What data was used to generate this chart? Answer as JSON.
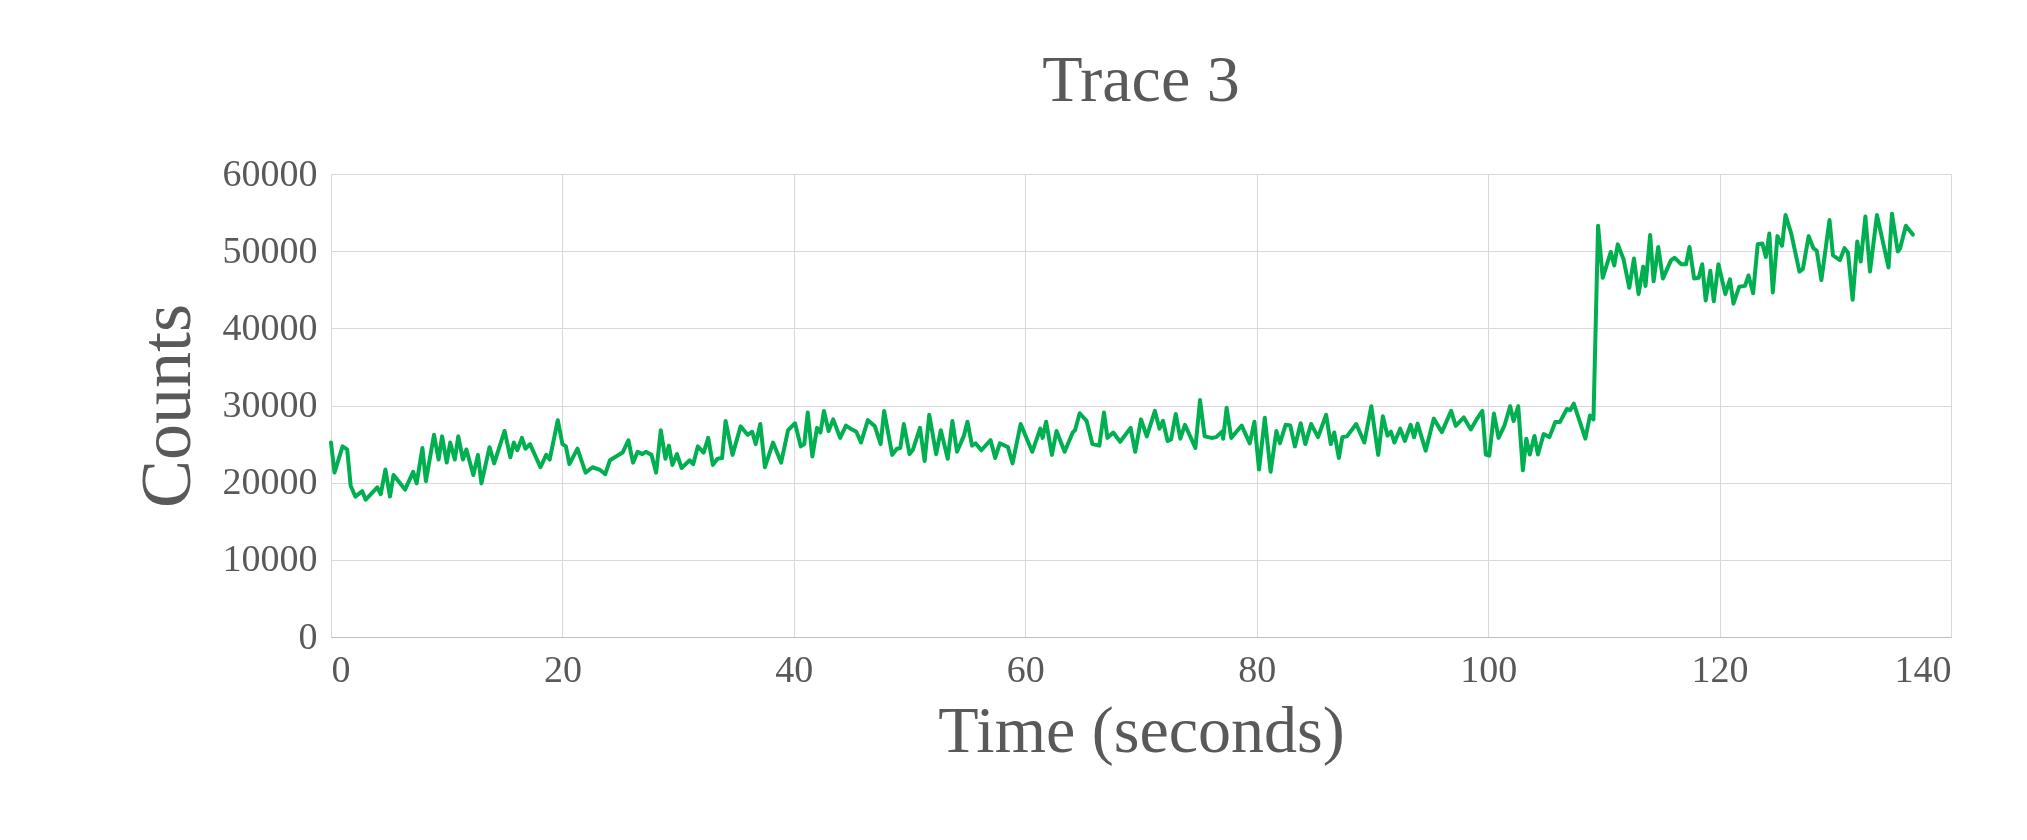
{
  "chart_data": {
    "type": "line",
    "title": "Trace 3",
    "xlabel": "Time (seconds)",
    "ylabel": "Counts",
    "xlim": [
      0,
      140
    ],
    "xticks": [
      0,
      20,
      40,
      60,
      80,
      100,
      120,
      140
    ],
    "ylim": [
      0,
      60000
    ],
    "yticks": [
      0,
      10000,
      20000,
      30000,
      40000,
      50000,
      60000
    ],
    "grid": true,
    "legend": false,
    "marker": "none",
    "line_style": "solid",
    "series": [
      {
        "color": "#00b050",
        "x": [
          0,
          0.3,
          1.0,
          1.4,
          1.7,
          2.1,
          2.7,
          3.0,
          4.0,
          4.3,
          4.7,
          5.1,
          5.4,
          6.4,
          7.1,
          7.4,
          7.9,
          8.2,
          8.9,
          9.3,
          9.6,
          10.0,
          10.3,
          10.7,
          11.0,
          11.4,
          11.7,
          12.3,
          12.7,
          13.0,
          13.7,
          14.1,
          15.0,
          15.5,
          15.8,
          16.1,
          16.5,
          16.8,
          17.2,
          18.1,
          18.6,
          18.9,
          19.6,
          20.0,
          20.3,
          20.6,
          21.3,
          22.0,
          22.6,
          23.2,
          23.7,
          24.1,
          25.2,
          25.7,
          26.1,
          26.5,
          26.9,
          27.2,
          27.7,
          28.1,
          28.5,
          28.9,
          29.2,
          29.5,
          29.9,
          30.3,
          31.0,
          31.3,
          31.7,
          32.2,
          32.6,
          33.0,
          33.4,
          33.8,
          34.1,
          34.7,
          35.4,
          36.0,
          36.4,
          36.7,
          37.1,
          37.5,
          38.2,
          38.9,
          39.5,
          40.1,
          40.6,
          40.9,
          41.2,
          41.6,
          42.0,
          42.3,
          42.6,
          43.0,
          43.4,
          44.0,
          44.5,
          44.9,
          45.4,
          45.8,
          46.4,
          47.0,
          47.5,
          47.8,
          48.5,
          48.9,
          49.2,
          49.5,
          50.0,
          50.3,
          50.9,
          51.3,
          51.7,
          52.3,
          52.7,
          53.3,
          53.7,
          54.1,
          54.7,
          55.0,
          55.4,
          55.7,
          56.2,
          57.0,
          57.4,
          57.8,
          58.5,
          58.9,
          59.6,
          60.6,
          61.3,
          61.5,
          61.8,
          62.3,
          62.7,
          63.4,
          64.1,
          64.3,
          64.7,
          65.3,
          65.8,
          66.4,
          66.8,
          67.1,
          67.6,
          68.2,
          69.1,
          69.5,
          70.0,
          70.5,
          71.2,
          71.6,
          71.9,
          72.3,
          72.6,
          73.0,
          73.4,
          73.8,
          74.7,
          75.1,
          75.5,
          76.1,
          76.5,
          77.0,
          77.1,
          77.4,
          77.8,
          78.7,
          79.4,
          79.8,
          80.2,
          80.7,
          81.2,
          81.7,
          82.0,
          82.5,
          82.9,
          83.3,
          83.8,
          84.2,
          84.7,
          85.3,
          86.0,
          86.4,
          86.7,
          87.1,
          87.4,
          87.8,
          88.6,
          89.3,
          89.9,
          90.5,
          90.9,
          91.3,
          91.6,
          91.9,
          92.4,
          92.8,
          93.3,
          93.6,
          93.9,
          94.6,
          95.3,
          96.0,
          96.8,
          97.2,
          97.9,
          98.5,
          99.0,
          99.5,
          99.8,
          100.1,
          100.5,
          100.9,
          101.4,
          101.9,
          102.2,
          102.6,
          103.0,
          103.3,
          103.6,
          104.0,
          104.3,
          104.8,
          105.3,
          105.8,
          106.2,
          106.8,
          107.1,
          107.4,
          107.9,
          108.4,
          108.8,
          109.1,
          109.5,
          109.9,
          110.6,
          110.9,
          111.2,
          111.7,
          112.2,
          112.6,
          113.0,
          113.4,
          113.6,
          114.0,
          114.3,
          114.7,
          115.1,
          115.8,
          116.1,
          116.7,
          117.1,
          117.4,
          117.8,
          118.2,
          118.5,
          118.8,
          119.2,
          119.5,
          119.9,
          120.5,
          120.9,
          121.2,
          121.7,
          122.2,
          122.5,
          122.9,
          123.3,
          123.7,
          124.0,
          124.3,
          124.6,
          125.0,
          125.4,
          125.7,
          126.2,
          126.9,
          127.2,
          127.7,
          128.1,
          128.4,
          128.8,
          129.5,
          129.8,
          130.4,
          130.8,
          131.1,
          131.5,
          131.9,
          132.2,
          132.6,
          133.0,
          133.6,
          134.6,
          134.9,
          135.4,
          135.6,
          136.1,
          136.7
        ],
        "values": [
          25200,
          21300,
          24700,
          24300,
          19600,
          18200,
          18900,
          17800,
          19400,
          18500,
          21700,
          18200,
          21000,
          19100,
          21400,
          19900,
          24500,
          20200,
          26200,
          23000,
          26000,
          22600,
          25200,
          23000,
          26000,
          23000,
          24300,
          21000,
          23600,
          19900,
          24600,
          22500,
          26700,
          23300,
          25200,
          24200,
          25800,
          24400,
          25000,
          22000,
          23600,
          23000,
          28100,
          25000,
          24700,
          22400,
          24400,
          21300,
          22000,
          21700,
          21100,
          22900,
          23900,
          25500,
          22600,
          24000,
          23700,
          24000,
          23600,
          21300,
          26800,
          23100,
          24800,
          22300,
          23700,
          21900,
          22900,
          22400,
          24700,
          23900,
          25800,
          22300,
          23100,
          23200,
          28000,
          23600,
          27300,
          26200,
          26600,
          25000,
          27600,
          22000,
          25200,
          22600,
          26800,
          27700,
          24700,
          25000,
          29100,
          23400,
          27100,
          26500,
          29300,
          26700,
          28200,
          25800,
          27400,
          27000,
          26600,
          25200,
          28100,
          27300,
          25000,
          29300,
          23600,
          24400,
          24500,
          27600,
          23700,
          24300,
          27100,
          22800,
          28800,
          23700,
          26800,
          23100,
          28000,
          24000,
          26100,
          27900,
          24800,
          25100,
          24200,
          25500,
          23200,
          25100,
          24600,
          22500,
          27600,
          24000,
          27000,
          25800,
          27900,
          23600,
          26700,
          24000,
          26500,
          26800,
          29000,
          28000,
          25000,
          24800,
          29100,
          25800,
          26500,
          25300,
          27100,
          24000,
          28200,
          26000,
          29300,
          27000,
          28000,
          25400,
          25600,
          28900,
          25700,
          27500,
          24500,
          30700,
          26000,
          25800,
          25900,
          26600,
          25700,
          29700,
          25800,
          27400,
          25100,
          27900,
          21700,
          28400,
          21400,
          26700,
          25100,
          27500,
          27400,
          24700,
          27700,
          25000,
          27600,
          25900,
          28800,
          25000,
          26500,
          23200,
          25900,
          26000,
          27600,
          25200,
          29900,
          23600,
          28600,
          26100,
          26600,
          25200,
          27000,
          25400,
          27500,
          25900,
          27650,
          24150,
          28300,
          26550,
          29300,
          27350,
          28450,
          26900,
          28200,
          29300,
          23650,
          23500,
          28950,
          25800,
          27350,
          29900,
          28000,
          29900,
          21600,
          25700,
          23650,
          26050,
          23650,
          26300,
          25900,
          27850,
          27850,
          29550,
          29400,
          30250,
          28000,
          25700,
          28700,
          28200,
          53300,
          46550,
          49900,
          48150,
          50900,
          48950,
          45250,
          49050,
          44450,
          48000,
          45500,
          52100,
          46100,
          50550,
          46450,
          48800,
          49150,
          48300,
          48300,
          50550,
          46450,
          46550,
          48300,
          43600,
          47450,
          43500,
          48300,
          44450,
          46350,
          43200,
          45400,
          45500,
          46850,
          44550,
          50900,
          51000,
          49250,
          52300,
          44650,
          51950,
          50700,
          54700,
          52250,
          47350,
          47700,
          51950,
          50400,
          50050,
          46250,
          54050,
          49450,
          48850,
          50400,
          49800,
          43700,
          51250,
          48650,
          54500,
          47350,
          54700,
          47900,
          54850,
          49950,
          50350,
          53300,
          52150
        ]
      }
    ]
  }
}
